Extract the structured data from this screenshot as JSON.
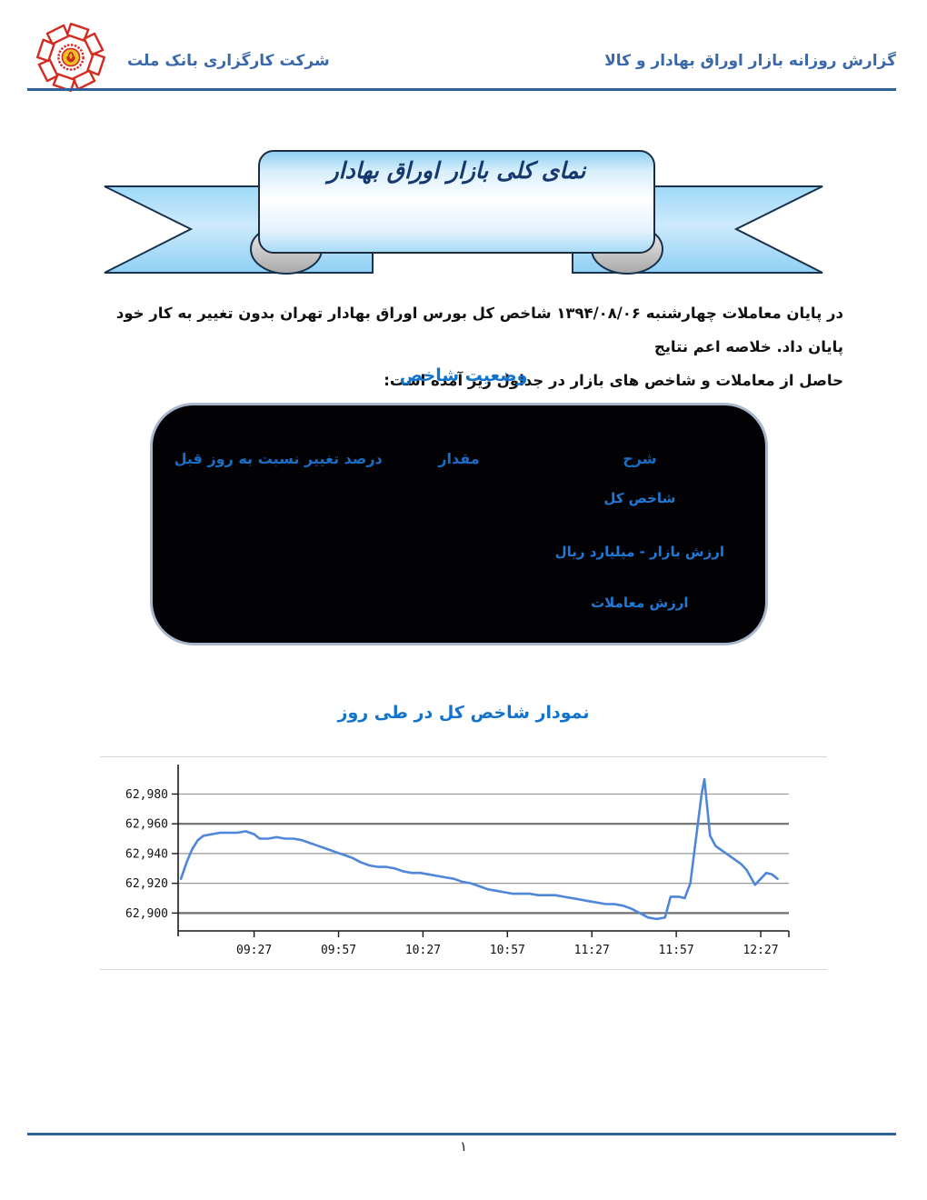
{
  "header": {
    "company": "شرکت کارگزاری بانک ملت",
    "report_title": "گزارش روزانه بازار اوراق بهادار و کالا"
  },
  "banner": {
    "title": "نمای کلی بازار اوراق بهادار"
  },
  "intro": {
    "line1": "در پایان معاملات چهارشنبه ۱۳۹۴/۰۸/۰۶ شاخص کل بورس اوراق بهادار تهران بدون تغییر به کار خود پایان داد. خلاصه اعم نتایج",
    "line2": "حاصل از معاملات و شاخص های بازار در جداول زیر آمده است:"
  },
  "index_status": {
    "title": "وضعیت شاخص",
    "columns": [
      "شرح",
      "مقدار",
      "درصد تغییر نسبت به روز قبل"
    ],
    "rows": [
      {
        "label": "شاخص کل",
        "value": "",
        "change": ""
      },
      {
        "label": "ارزش بازار - میلیارد ریال",
        "value": "",
        "change": ""
      },
      {
        "label": "ارزش معاملات",
        "value": "",
        "change": ""
      }
    ]
  },
  "chart_section": {
    "title": "نمودار شاخص کل در طی روز"
  },
  "chart_data": {
    "type": "line",
    "title": "نمودار شاخص کل در طی روز",
    "x": [
      "09:01",
      "09:03",
      "09:05",
      "09:07",
      "09:09",
      "09:12",
      "09:15",
      "09:18",
      "09:21",
      "09:24",
      "09:27",
      "09:29",
      "09:32",
      "09:35",
      "09:38",
      "09:41",
      "09:44",
      "09:47",
      "09:50",
      "09:53",
      "09:56",
      "09:59",
      "10:02",
      "10:05",
      "10:08",
      "10:11",
      "10:14",
      "10:17",
      "10:20",
      "10:23",
      "10:26",
      "10:29",
      "10:32",
      "10:35",
      "10:38",
      "10:41",
      "10:44",
      "10:47",
      "10:50",
      "10:53",
      "10:56",
      "10:59",
      "11:02",
      "11:05",
      "11:08",
      "11:11",
      "11:14",
      "11:17",
      "11:20",
      "11:23",
      "11:26",
      "11:29",
      "11:32",
      "11:35",
      "11:38",
      "11:41",
      "11:44",
      "11:47",
      "11:50",
      "11:53",
      "11:55",
      "11:58",
      "12:00",
      "12:02",
      "12:04",
      "12:06",
      "12:07",
      "12:09",
      "12:11",
      "12:14",
      "12:17",
      "12:20",
      "12:22",
      "12:25",
      "12:27",
      "12:29",
      "12:31",
      "12:33"
    ],
    "values": [
      62923,
      62934,
      62943,
      62949,
      62952,
      62953,
      62954,
      62954,
      62954,
      62955,
      62953,
      62950,
      62950,
      62951,
      62950,
      62950,
      62949,
      62947,
      62945,
      62943,
      62941,
      62939,
      62937,
      62934,
      62932,
      62931,
      62931,
      62930,
      62928,
      62927,
      62927,
      62926,
      62925,
      62924,
      62923,
      62921,
      62920,
      62918,
      62916,
      62915,
      62914,
      62913,
      62913,
      62913,
      62912,
      62912,
      62912,
      62911,
      62910,
      62909,
      62908,
      62907,
      62906,
      62906,
      62905,
      62903,
      62900,
      62897,
      62896,
      62897,
      62911,
      62911,
      62910,
      62920,
      62950,
      62980,
      62990,
      62952,
      62945,
      62941,
      62937,
      62933,
      62929,
      62919,
      62923,
      62927,
      62926,
      62923
    ],
    "x_ticks": [
      "09:27",
      "09:57",
      "10:27",
      "10:57",
      "11:27",
      "11:57",
      "12:27"
    ],
    "x_domain": [
      "09:00",
      "12:37"
    ],
    "y_ticks": [
      62900,
      62920,
      62940,
      62960,
      62980
    ],
    "y_tick_labels": [
      "62,900",
      "62,920",
      "62,940",
      "62,960",
      "62,980"
    ],
    "y_major": [
      62900,
      62960
    ],
    "ylim": [
      62888,
      62998
    ],
    "grid": "horizontal",
    "legend": "none",
    "style": {
      "line": "#4e86d9",
      "grid_major": "#6f6f6f",
      "grid_minor": "#999999",
      "axis": "#1a1a1a"
    }
  },
  "footer": {
    "page_number": "۱"
  }
}
